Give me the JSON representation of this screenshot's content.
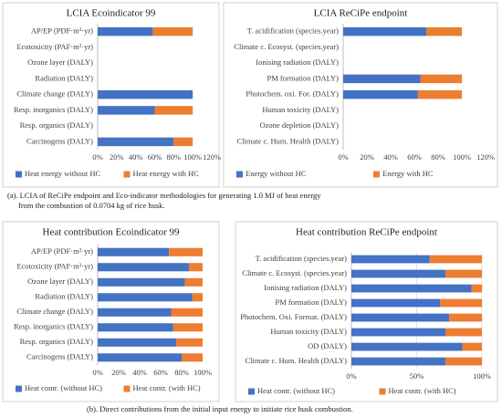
{
  "chart_data": [
    {
      "type": "bar",
      "orientation": "horizontal",
      "stacked": true,
      "title": "LCIA Ecoindicator 99",
      "categories": [
        "AP/EP (PDF·m²·yr)",
        "Ecotoxicity (PAF·m²·yr)",
        "Ozone layer (DALY)",
        "Radiation (DALY)",
        "Climate change (DALY)",
        "Resp. inorganics (DALY)",
        "Resp. organics (DALY)",
        "Carcinogens (DALY)"
      ],
      "series": [
        {
          "name": "Heat energy without HC",
          "color": "#4472c4",
          "values": [
            58,
            0,
            0,
            0,
            100,
            60,
            0,
            80
          ]
        },
        {
          "name": "Heat energy with HC",
          "color": "#ed7d31",
          "values": [
            42,
            0,
            0,
            0,
            0,
            40,
            0,
            20
          ]
        }
      ],
      "xlim": [
        0,
        120
      ],
      "xticks": [
        {
          "value": 0,
          "label": "0%"
        },
        {
          "value": 20,
          "label": "20%"
        },
        {
          "value": 40,
          "label": "40%"
        },
        {
          "value": 60,
          "label": "60%"
        },
        {
          "value": 80,
          "label": "80%"
        },
        {
          "value": 100,
          "label": "100%"
        },
        {
          "value": 120,
          "label": "120%"
        }
      ],
      "grid": false,
      "legend": "bottom"
    },
    {
      "type": "bar",
      "orientation": "horizontal",
      "stacked": true,
      "title": "LCIA ReCiPe endpoint",
      "categories": [
        "T. acidification (species.year)",
        "Climate c. Ecosyst. (species.year)",
        "Ionising radiation (DALY)",
        "PM formation (DALY)",
        "Photochem. oxi. For. (DALY)",
        "Human toxicity (DALY)",
        "Ozone depletion (DALY)",
        "Climate c. Hum. Health (DALY)"
      ],
      "series": [
        {
          "name": "Energy without HC",
          "color": "#4472c4",
          "values": [
            70,
            0,
            0,
            65,
            63,
            0,
            0,
            0
          ]
        },
        {
          "name": "Energy with HC",
          "color": "#ed7d31",
          "values": [
            30,
            0,
            0,
            35,
            37,
            0,
            0,
            0
          ]
        }
      ],
      "xlim": [
        0,
        120
      ],
      "xticks": [
        {
          "value": 0,
          "label": "0%"
        },
        {
          "value": 20,
          "label": "20%"
        },
        {
          "value": 40,
          "label": "40%"
        },
        {
          "value": 60,
          "label": "60%"
        },
        {
          "value": 80,
          "label": "80%"
        },
        {
          "value": 100,
          "label": "100%"
        },
        {
          "value": 120,
          "label": "120%"
        }
      ],
      "grid": false,
      "legend": "bottom"
    },
    {
      "type": "bar",
      "orientation": "horizontal",
      "stacked": true,
      "title": "Heat contribution Ecoindicator 99",
      "categories": [
        "AP/EP (PDF·m²·yr)",
        "Ecotoxicity (PAF·m²·yr)",
        "Ozone layer (DALY)",
        "Radiation (DALY)",
        "Climate change (DALY)",
        "Resp. inorganics (DALY)",
        "Resp. organics (DALY)",
        "Carcinogens (DALY)"
      ],
      "series": [
        {
          "name": "Heat contr. (without HC)",
          "color": "#4472c4",
          "values": [
            68,
            87,
            83,
            90,
            70,
            72,
            75,
            80
          ]
        },
        {
          "name": "Heat contr. (with HC)",
          "color": "#ed7d31",
          "values": [
            32,
            13,
            17,
            10,
            30,
            28,
            25,
            20
          ]
        }
      ],
      "xlim": [
        0,
        100
      ],
      "xticks": [
        {
          "value": 0,
          "label": "0%"
        },
        {
          "value": 20,
          "label": "20%"
        },
        {
          "value": 40,
          "label": "40%"
        },
        {
          "value": 60,
          "label": "60%"
        },
        {
          "value": 80,
          "label": "80%"
        },
        {
          "value": 100,
          "label": "100%"
        }
      ],
      "grid": false,
      "legend": "bottom"
    },
    {
      "type": "bar",
      "orientation": "horizontal",
      "stacked": true,
      "title": "Heat contribution ReCiPe endpoint",
      "categories": [
        "T. acidification (species.year)",
        "Climate c. Ecosyst. (species.year)",
        "Ionising radiation (DALY)",
        "PM formation (DALY)",
        "Photochem. Oxi. Format. (DALY)",
        "Human toxicity (DALY)",
        "OD (DALY)",
        "Climate c. Hum. Health (DALY)"
      ],
      "series": [
        {
          "name": "Heat contr. (without HC)",
          "color": "#4472c4",
          "values": [
            60,
            72,
            92,
            68,
            75,
            72,
            85,
            72
          ]
        },
        {
          "name": "Heat contr. (with HC)",
          "color": "#ed7d31",
          "values": [
            40,
            28,
            8,
            32,
            25,
            28,
            15,
            28
          ]
        }
      ],
      "xlim": [
        0,
        100
      ],
      "xticks": [
        {
          "value": 0,
          "label": "0%"
        },
        {
          "value": 50,
          "label": "50%"
        },
        {
          "value": 100,
          "label": "100%"
        }
      ],
      "grid": true,
      "legend": "bottom"
    }
  ],
  "captions": [
    [
      "(a). LCIA of ReCiPe endpoint and Eco-indicator methodologies for generating 1.0 MJ of heat energy",
      "from the combustion of 0.0704 kg of rice husk."
    ],
    [
      "(b). Direct contributions from the initial input energy to initiate rice husk combustion."
    ]
  ]
}
